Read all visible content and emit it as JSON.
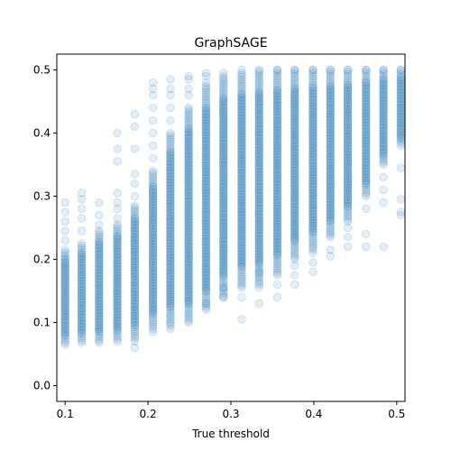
{
  "chart_data": {
    "type": "scatter",
    "title": "GraphSAGE",
    "xlabel": "True threshold",
    "ylabel": "",
    "xlim": [
      0.09,
      0.51
    ],
    "ylim": [
      -0.025,
      0.525
    ],
    "x_ticks": [
      {
        "value": 0.1,
        "label": "0.1"
      },
      {
        "value": 0.2,
        "label": "0.2"
      },
      {
        "value": 0.3,
        "label": "0.3"
      },
      {
        "value": 0.4,
        "label": "0.4"
      },
      {
        "value": 0.5,
        "label": "0.5"
      }
    ],
    "y_ticks": [
      {
        "value": 0.0,
        "label": "0.0"
      },
      {
        "value": 0.1,
        "label": "0.1"
      },
      {
        "value": 0.2,
        "label": "0.2"
      },
      {
        "value": 0.3,
        "label": "0.3"
      },
      {
        "value": 0.4,
        "label": "0.4"
      },
      {
        "value": 0.5,
        "label": "0.5"
      }
    ],
    "grid": false,
    "legend": "none",
    "point_color": "#1f77b4",
    "point_alpha": 0.12,
    "columns": [
      {
        "x": 0.1,
        "dense": [
          0.065,
          0.215
        ],
        "outliers": [
          0.23,
          0.245,
          0.26,
          0.275,
          0.29
        ]
      },
      {
        "x": 0.12,
        "dense": [
          0.068,
          0.225
        ],
        "outliers": [
          0.245,
          0.265,
          0.28,
          0.295,
          0.305
        ]
      },
      {
        "x": 0.141,
        "dense": [
          0.068,
          0.245
        ],
        "outliers": [
          0.255,
          0.27,
          0.29
        ]
      },
      {
        "x": 0.163,
        "dense": [
          0.07,
          0.255
        ],
        "outliers": [
          0.265,
          0.28,
          0.29,
          0.305,
          0.355,
          0.375,
          0.4
        ]
      },
      {
        "x": 0.184,
        "dense": [
          0.075,
          0.285
        ],
        "outliers": [
          0.06,
          0.07,
          0.3,
          0.32,
          0.335,
          0.375,
          0.41,
          0.43
        ]
      },
      {
        "x": 0.206,
        "dense": [
          0.09,
          0.34
        ],
        "outliers": [
          0.085,
          0.36,
          0.38,
          0.4,
          0.42,
          0.44,
          0.46,
          0.47,
          0.48
        ]
      },
      {
        "x": 0.227,
        "dense": [
          0.095,
          0.4
        ],
        "outliers": [
          0.09,
          0.42,
          0.44,
          0.46,
          0.47,
          0.485
        ]
      },
      {
        "x": 0.249,
        "dense": [
          0.1,
          0.44
        ],
        "outliers": [
          0.13,
          0.46,
          0.47,
          0.485,
          0.49
        ]
      },
      {
        "x": 0.27,
        "dense": [
          0.12,
          0.475
        ],
        "outliers": [
          0.13,
          0.15,
          0.48,
          0.49,
          0.495
        ]
      },
      {
        "x": 0.291,
        "dense": [
          0.14,
          0.49
        ],
        "outliers": [
          0.14,
          0.155,
          0.495
        ]
      },
      {
        "x": 0.313,
        "dense": [
          0.155,
          0.495
        ],
        "outliers": [
          0.105,
          0.14,
          0.5
        ]
      },
      {
        "x": 0.334,
        "dense": [
          0.16,
          0.498
        ],
        "outliers": [
          0.13,
          0.155,
          0.18,
          0.5
        ]
      },
      {
        "x": 0.356,
        "dense": [
          0.175,
          0.5
        ],
        "outliers": [
          0.14,
          0.16,
          0.5
        ]
      },
      {
        "x": 0.377,
        "dense": [
          0.2,
          0.5
        ],
        "outliers": [
          0.16,
          0.175,
          0.19,
          0.5
        ]
      },
      {
        "x": 0.399,
        "dense": [
          0.215,
          0.5
        ],
        "outliers": [
          0.18,
          0.195,
          0.21,
          0.5
        ]
      },
      {
        "x": 0.42,
        "dense": [
          0.235,
          0.5
        ],
        "outliers": [
          0.205,
          0.215,
          0.5
        ]
      },
      {
        "x": 0.441,
        "dense": [
          0.26,
          0.5
        ],
        "outliers": [
          0.22,
          0.235,
          0.25,
          0.5
        ]
      },
      {
        "x": 0.463,
        "dense": [
          0.3,
          0.5
        ],
        "outliers": [
          0.22,
          0.24,
          0.28,
          0.5
        ]
      },
      {
        "x": 0.484,
        "dense": [
          0.35,
          0.5
        ],
        "outliers": [
          0.22,
          0.29,
          0.31,
          0.33,
          0.5
        ]
      },
      {
        "x": 0.505,
        "dense": [
          0.38,
          0.5
        ],
        "outliers": [
          0.27,
          0.275,
          0.295,
          0.345,
          0.5
        ]
      }
    ]
  }
}
